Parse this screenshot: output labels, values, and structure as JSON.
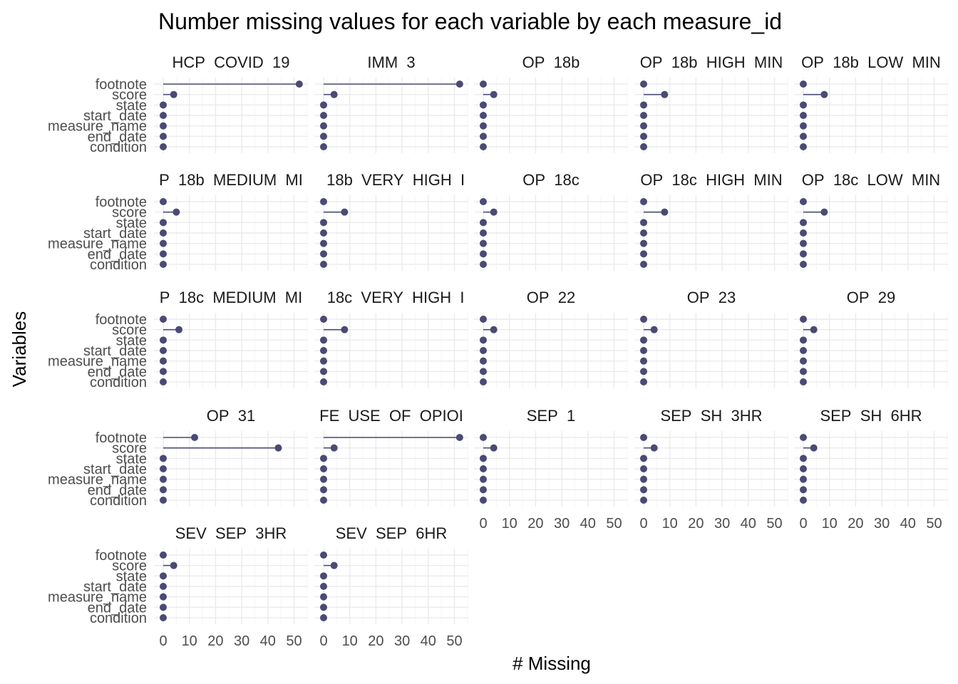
{
  "chart_data": {
    "type": "lollipop",
    "title": "Number missing values for each variable by each measure_id",
    "xlabel": "# Missing",
    "ylabel": "Variables",
    "variables": [
      "footnote",
      "score",
      "state",
      "start_date",
      "measure_name",
      "end_date",
      "condition"
    ],
    "xlim": [
      0,
      53
    ],
    "x_ticks": [
      0,
      10,
      20,
      30,
      40,
      50
    ],
    "colors": {
      "point": "#4a4a74",
      "line": "#4a4a74"
    },
    "grid": true,
    "facets": [
      {
        "label": "HCP_COVID_19",
        "values": [
          52,
          4,
          0,
          0,
          0,
          0,
          0
        ]
      },
      {
        "label": "IMM_3",
        "values": [
          52,
          4,
          0,
          0,
          0,
          0,
          0
        ]
      },
      {
        "label": "OP_18b",
        "values": [
          0,
          4,
          0,
          0,
          0,
          0,
          0
        ]
      },
      {
        "label": "OP_18b_HIGH_MIN",
        "values": [
          0,
          8,
          0,
          0,
          0,
          0,
          0
        ]
      },
      {
        "label": "OP_18b_LOW_MIN",
        "values": [
          0,
          8,
          0,
          0,
          0,
          0,
          0
        ]
      },
      {
        "label": "P_18b_MEDIUM_MI",
        "values": [
          0,
          5,
          0,
          0,
          0,
          0,
          0
        ]
      },
      {
        "label": "_18b_VERY_HIGH_I",
        "values": [
          0,
          8,
          0,
          0,
          0,
          0,
          0
        ]
      },
      {
        "label": "OP_18c",
        "values": [
          0,
          4,
          0,
          0,
          0,
          0,
          0
        ]
      },
      {
        "label": "OP_18c_HIGH_MIN",
        "values": [
          0,
          8,
          0,
          0,
          0,
          0,
          0
        ]
      },
      {
        "label": "OP_18c_LOW_MIN",
        "values": [
          0,
          8,
          0,
          0,
          0,
          0,
          0
        ]
      },
      {
        "label": "P_18c_MEDIUM_MI",
        "values": [
          0,
          6,
          0,
          0,
          0,
          0,
          0
        ]
      },
      {
        "label": "_18c_VERY_HIGH_I",
        "values": [
          0,
          8,
          0,
          0,
          0,
          0,
          0
        ]
      },
      {
        "label": "OP_22",
        "values": [
          0,
          4,
          0,
          0,
          0,
          0,
          0
        ]
      },
      {
        "label": "OP_23",
        "values": [
          0,
          4,
          0,
          0,
          0,
          0,
          0
        ]
      },
      {
        "label": "OP_29",
        "values": [
          0,
          4,
          0,
          0,
          0,
          0,
          0
        ]
      },
      {
        "label": "OP_31",
        "values": [
          12,
          44,
          0,
          0,
          0,
          0,
          0
        ]
      },
      {
        "label": "FE_USE_OF_OPIOI",
        "values": [
          52,
          4,
          0,
          0,
          0,
          0,
          0
        ]
      },
      {
        "label": "SEP_1",
        "values": [
          0,
          4,
          0,
          0,
          0,
          0,
          0
        ]
      },
      {
        "label": "SEP_SH_3HR",
        "values": [
          0,
          4,
          0,
          0,
          0,
          0,
          0
        ]
      },
      {
        "label": "SEP_SH_6HR",
        "values": [
          0,
          4,
          0,
          0,
          0,
          0,
          0
        ]
      },
      {
        "label": "SEV_SEP_3HR",
        "values": [
          0,
          4,
          0,
          0,
          0,
          0,
          0
        ]
      },
      {
        "label": "SEV_SEP_6HR",
        "values": [
          0,
          4,
          0,
          0,
          0,
          0,
          0
        ]
      }
    ]
  }
}
